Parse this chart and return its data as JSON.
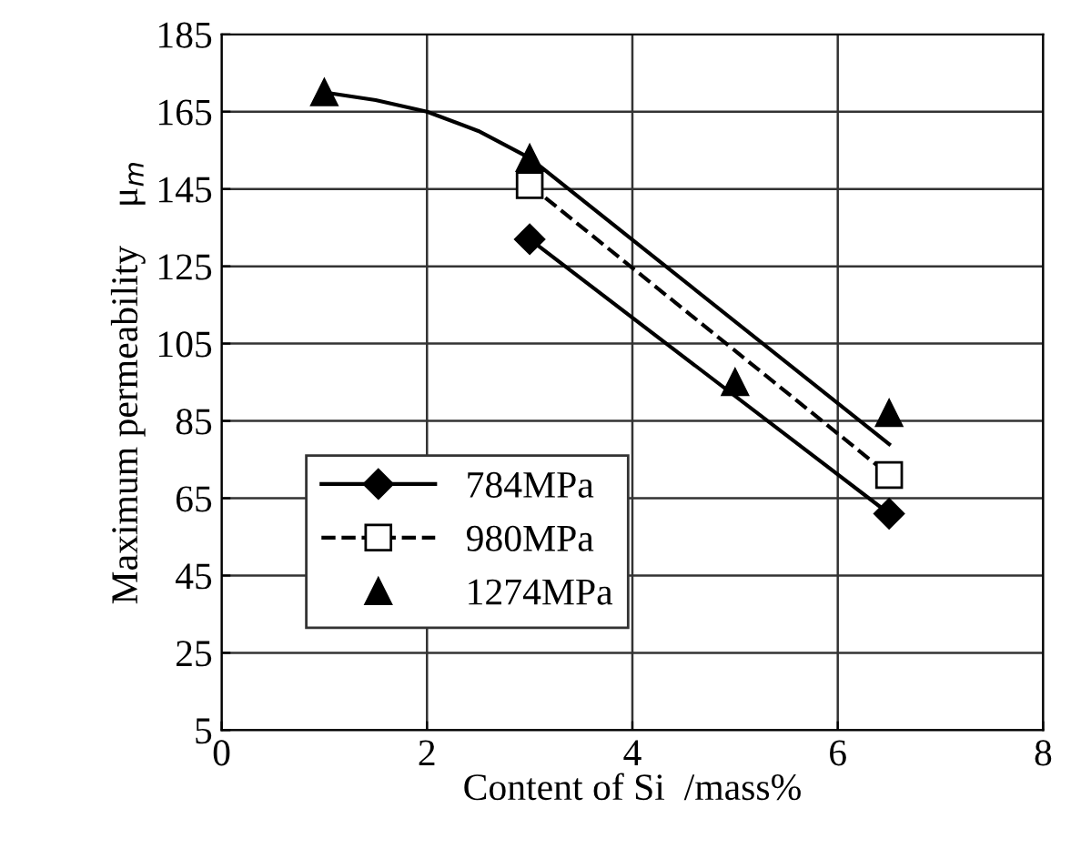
{
  "chart_data": {
    "type": "line",
    "xlabel": "Content of Si  /mass%",
    "ylabel": "Maximum permeability    μ$_{m}$",
    "xlim": [
      0,
      8
    ],
    "xticks": [
      0,
      2,
      4,
      6,
      8
    ],
    "ylim": [
      5,
      185
    ],
    "yticks": [
      5,
      25,
      45,
      65,
      85,
      105,
      125,
      145,
      165,
      185
    ],
    "grid": true,
    "legend": "bottom left",
    "series": [
      {
        "name": "784MPa",
        "color": "#000000",
        "marker": "diamond",
        "line_style": "solid",
        "x": [
          3,
          6.5
        ],
        "values": [
          132,
          61
        ]
      },
      {
        "name": "980MPa",
        "color": "#000000",
        "marker": "square",
        "line_style": "dashed",
        "x": [
          3,
          6.5
        ],
        "values": [
          146,
          71
        ]
      },
      {
        "name": "1274MPa",
        "type": "scatter",
        "color": "#000000",
        "marker": "triangle",
        "x": [
          1,
          3,
          5,
          6.5
        ],
        "values": [
          170,
          153,
          95,
          87
        ]
      },
      {
        "color": "#000000",
        "marker": "none",
        "line_style": "solid",
        "x": [
          1,
          1.5,
          2,
          2.5,
          3,
          6.5
        ],
        "values": [
          170,
          168,
          165,
          160,
          153,
          79
        ]
      }
    ]
  }
}
